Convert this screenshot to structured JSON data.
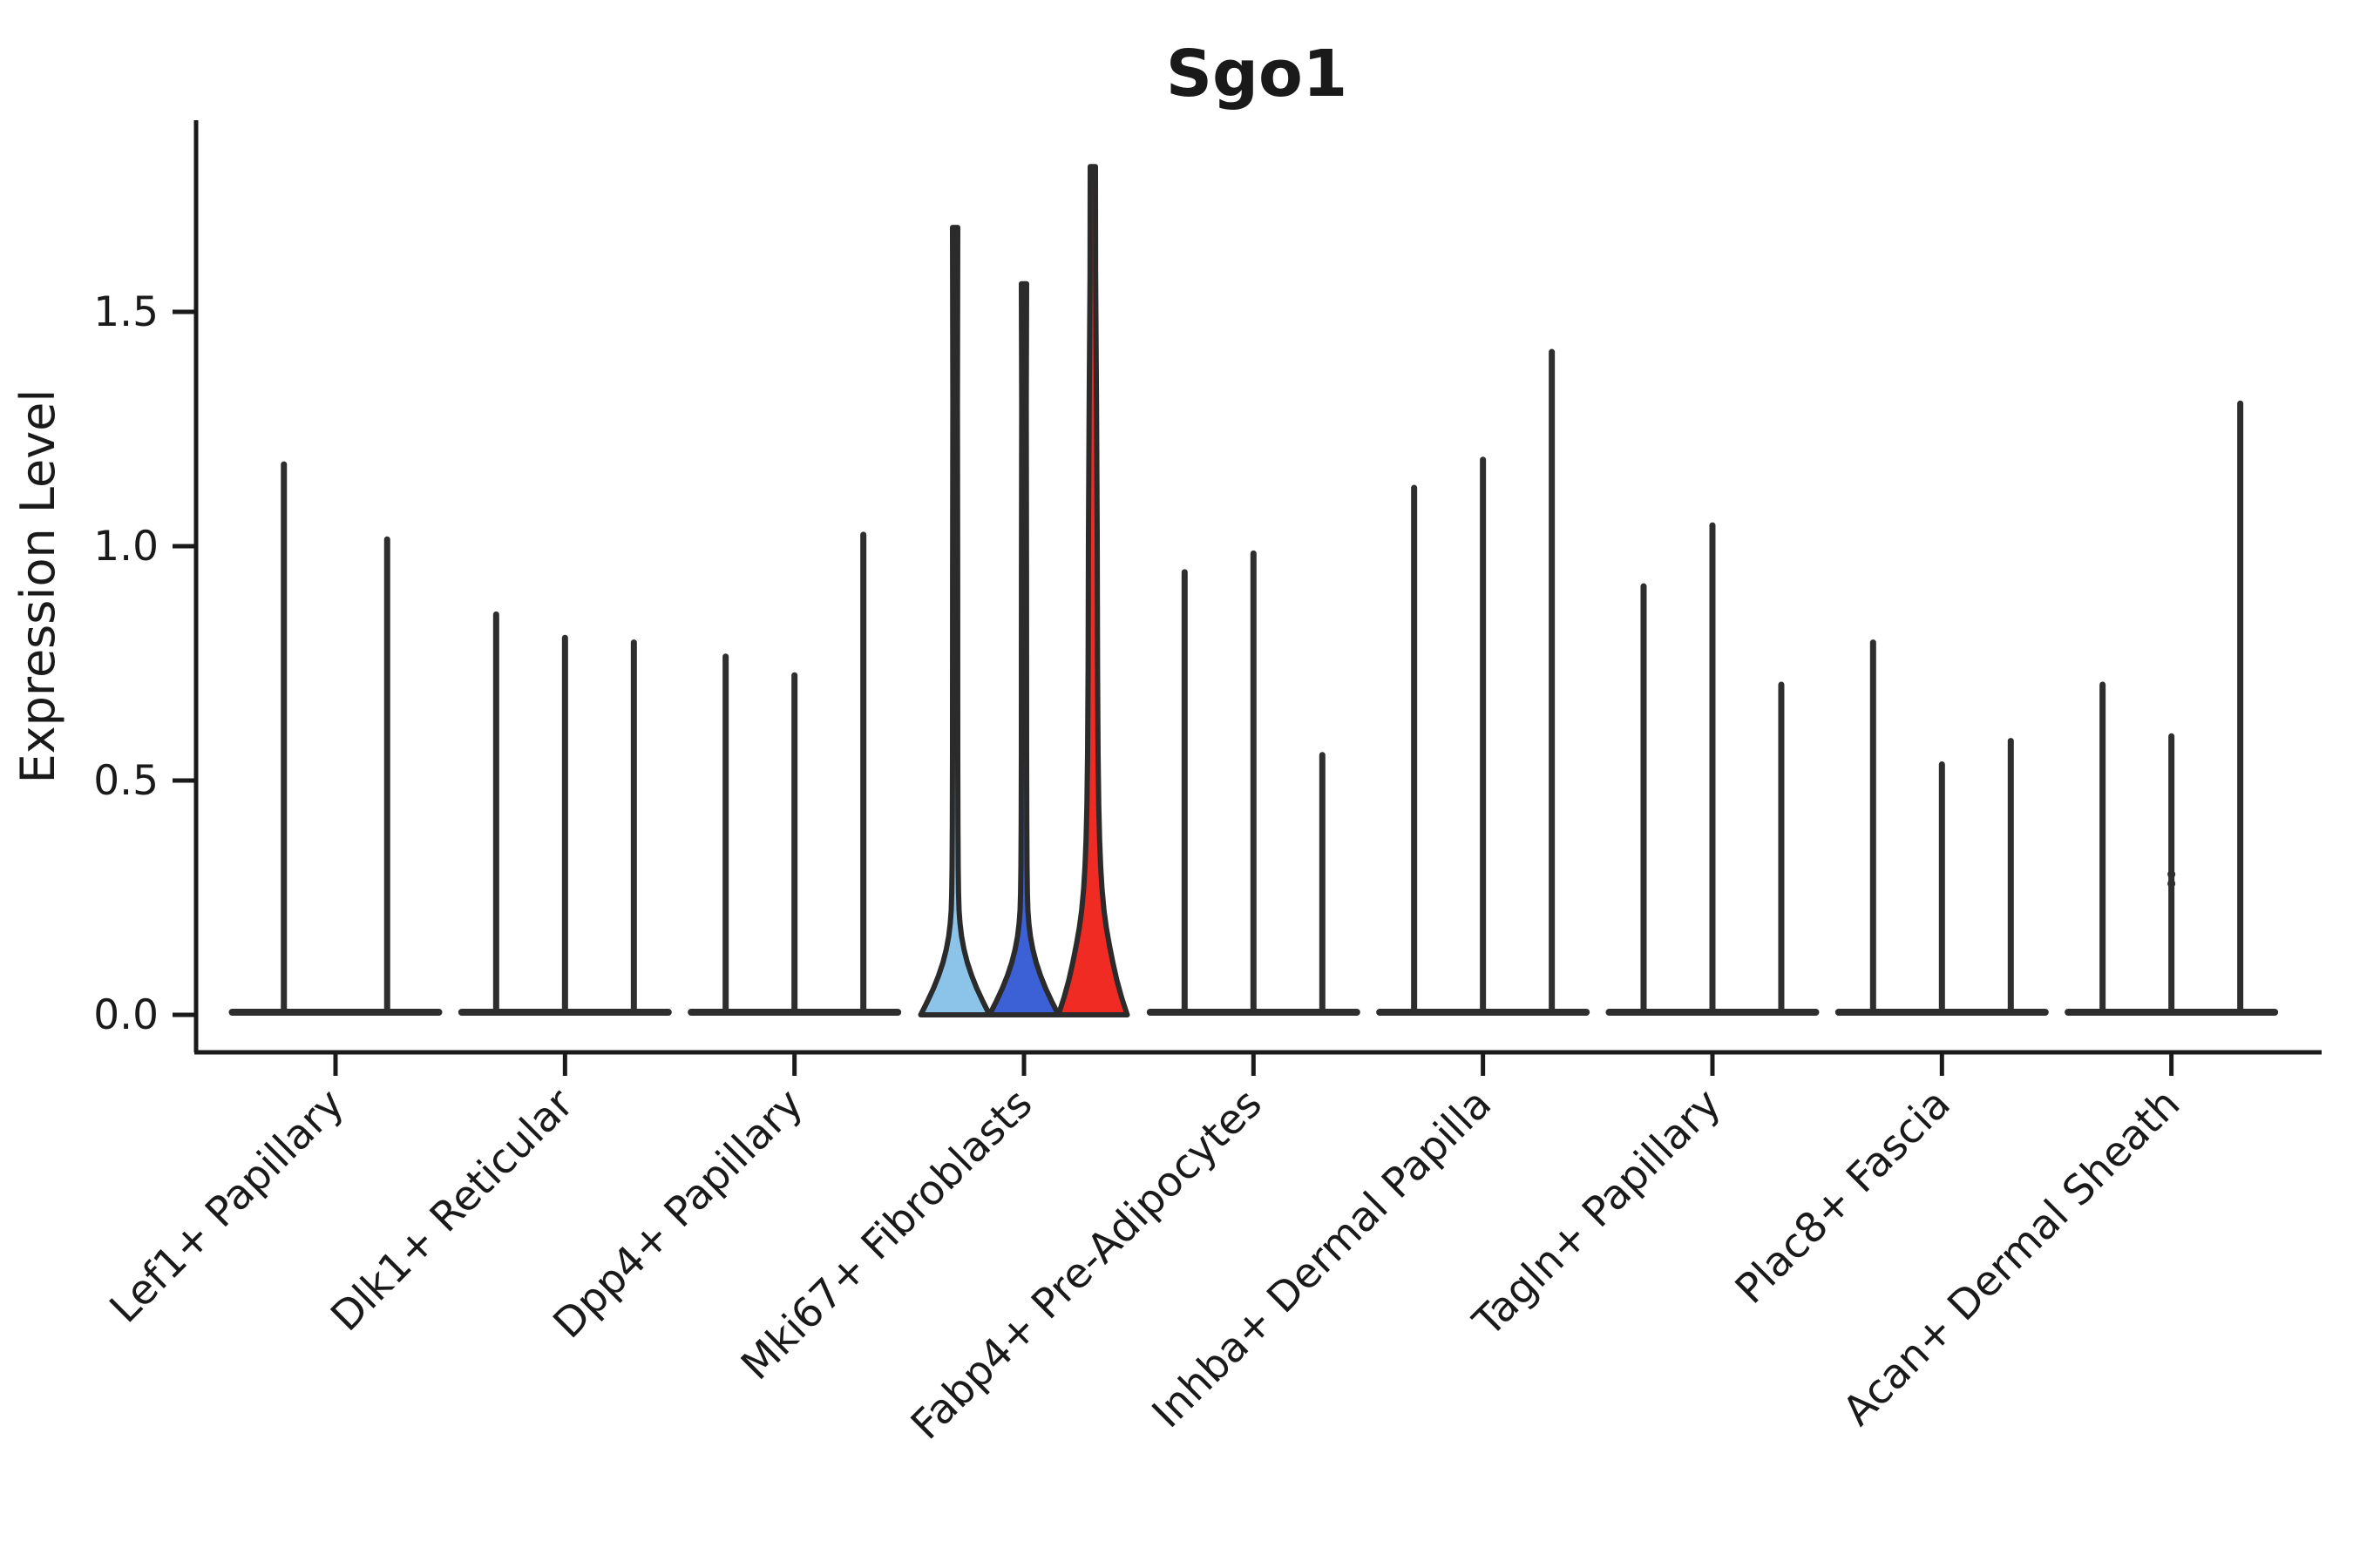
{
  "figure": {
    "title": "Sgo1",
    "ylabel": "Expression Level"
  },
  "chart_data": {
    "type": "violin",
    "title": "Sgo1",
    "xlabel": "",
    "ylabel": "Expression Level",
    "ylim": [
      -0.05,
      1.9
    ],
    "yticks": [
      "0.0",
      "0.5",
      "1.0",
      "1.5"
    ],
    "ytick_values": [
      0.0,
      0.5,
      1.0,
      1.5
    ],
    "grid": false,
    "legend_position": "none",
    "outline_color": "#2b2b2b",
    "baseline_color": "#2e2e2e",
    "axis_color": "#1a1a1a",
    "highlighted_category": "Mki67+ Fibroblasts",
    "highlight_fills": [
      "#8BC3E9",
      "#3C61D6",
      "#F02B24"
    ],
    "categories": [
      "Lef1+ Papillary",
      "Dlk1+ Reticular",
      "Dpp4+ Papillary",
      "Mki67+ Fibroblasts",
      "Fabp4+ Pre-Adipocytes",
      "Inhba+ Dermal Papilla",
      "Tagln+ Papillary",
      "Plac8+ Fascia",
      "Acan+ Dermal Sheath"
    ],
    "groups": [
      {
        "category": "Lef1+ Papillary",
        "violins": [
          {
            "max": 1.18,
            "fill": "none"
          },
          {
            "max": 1.02,
            "fill": "none"
          }
        ]
      },
      {
        "category": "Dlk1+ Reticular",
        "violins": [
          {
            "max": 0.86,
            "fill": "none"
          },
          {
            "max": 0.81,
            "fill": "none"
          },
          {
            "max": 0.8,
            "fill": "none"
          }
        ]
      },
      {
        "category": "Dpp4+ Papillary",
        "violins": [
          {
            "max": 0.77,
            "fill": "none"
          },
          {
            "max": 0.73,
            "fill": "none"
          },
          {
            "max": 1.03,
            "fill": "none"
          }
        ]
      },
      {
        "category": "Mki67+ Fibroblasts",
        "violins": [
          {
            "max": 1.68,
            "fill": "#8BC3E9",
            "body": "bell"
          },
          {
            "max": 1.56,
            "fill": "#3C61D6",
            "body": "bell"
          },
          {
            "max": 1.81,
            "fill": "#F02B24",
            "body": "wide-bell"
          }
        ]
      },
      {
        "category": "Fabp4+ Pre-Adipocytes",
        "violins": [
          {
            "max": 0.95,
            "fill": "none"
          },
          {
            "max": 0.99,
            "fill": "none"
          },
          {
            "max": 0.56,
            "fill": "none"
          }
        ]
      },
      {
        "category": "Inhba+ Dermal Papilla",
        "violins": [
          {
            "max": 1.13,
            "fill": "none"
          },
          {
            "max": 1.19,
            "fill": "none"
          },
          {
            "max": 1.42,
            "fill": "none"
          }
        ]
      },
      {
        "category": "Tagln+ Papillary",
        "violins": [
          {
            "max": 0.92,
            "fill": "none"
          },
          {
            "max": 1.05,
            "fill": "none"
          },
          {
            "max": 0.71,
            "fill": "none"
          }
        ]
      },
      {
        "category": "Plac8+ Fascia",
        "violins": [
          {
            "max": 0.8,
            "fill": "none"
          },
          {
            "max": 0.54,
            "fill": "none"
          },
          {
            "max": 0.59,
            "fill": "none"
          }
        ]
      },
      {
        "category": "Acan+ Dermal Sheath",
        "violins": [
          {
            "max": 0.71,
            "fill": "none"
          },
          {
            "max": 0.6,
            "fill": "none",
            "dots": [
              0.3,
              0.28
            ]
          },
          {
            "max": 1.31,
            "fill": "none"
          }
        ]
      }
    ]
  }
}
